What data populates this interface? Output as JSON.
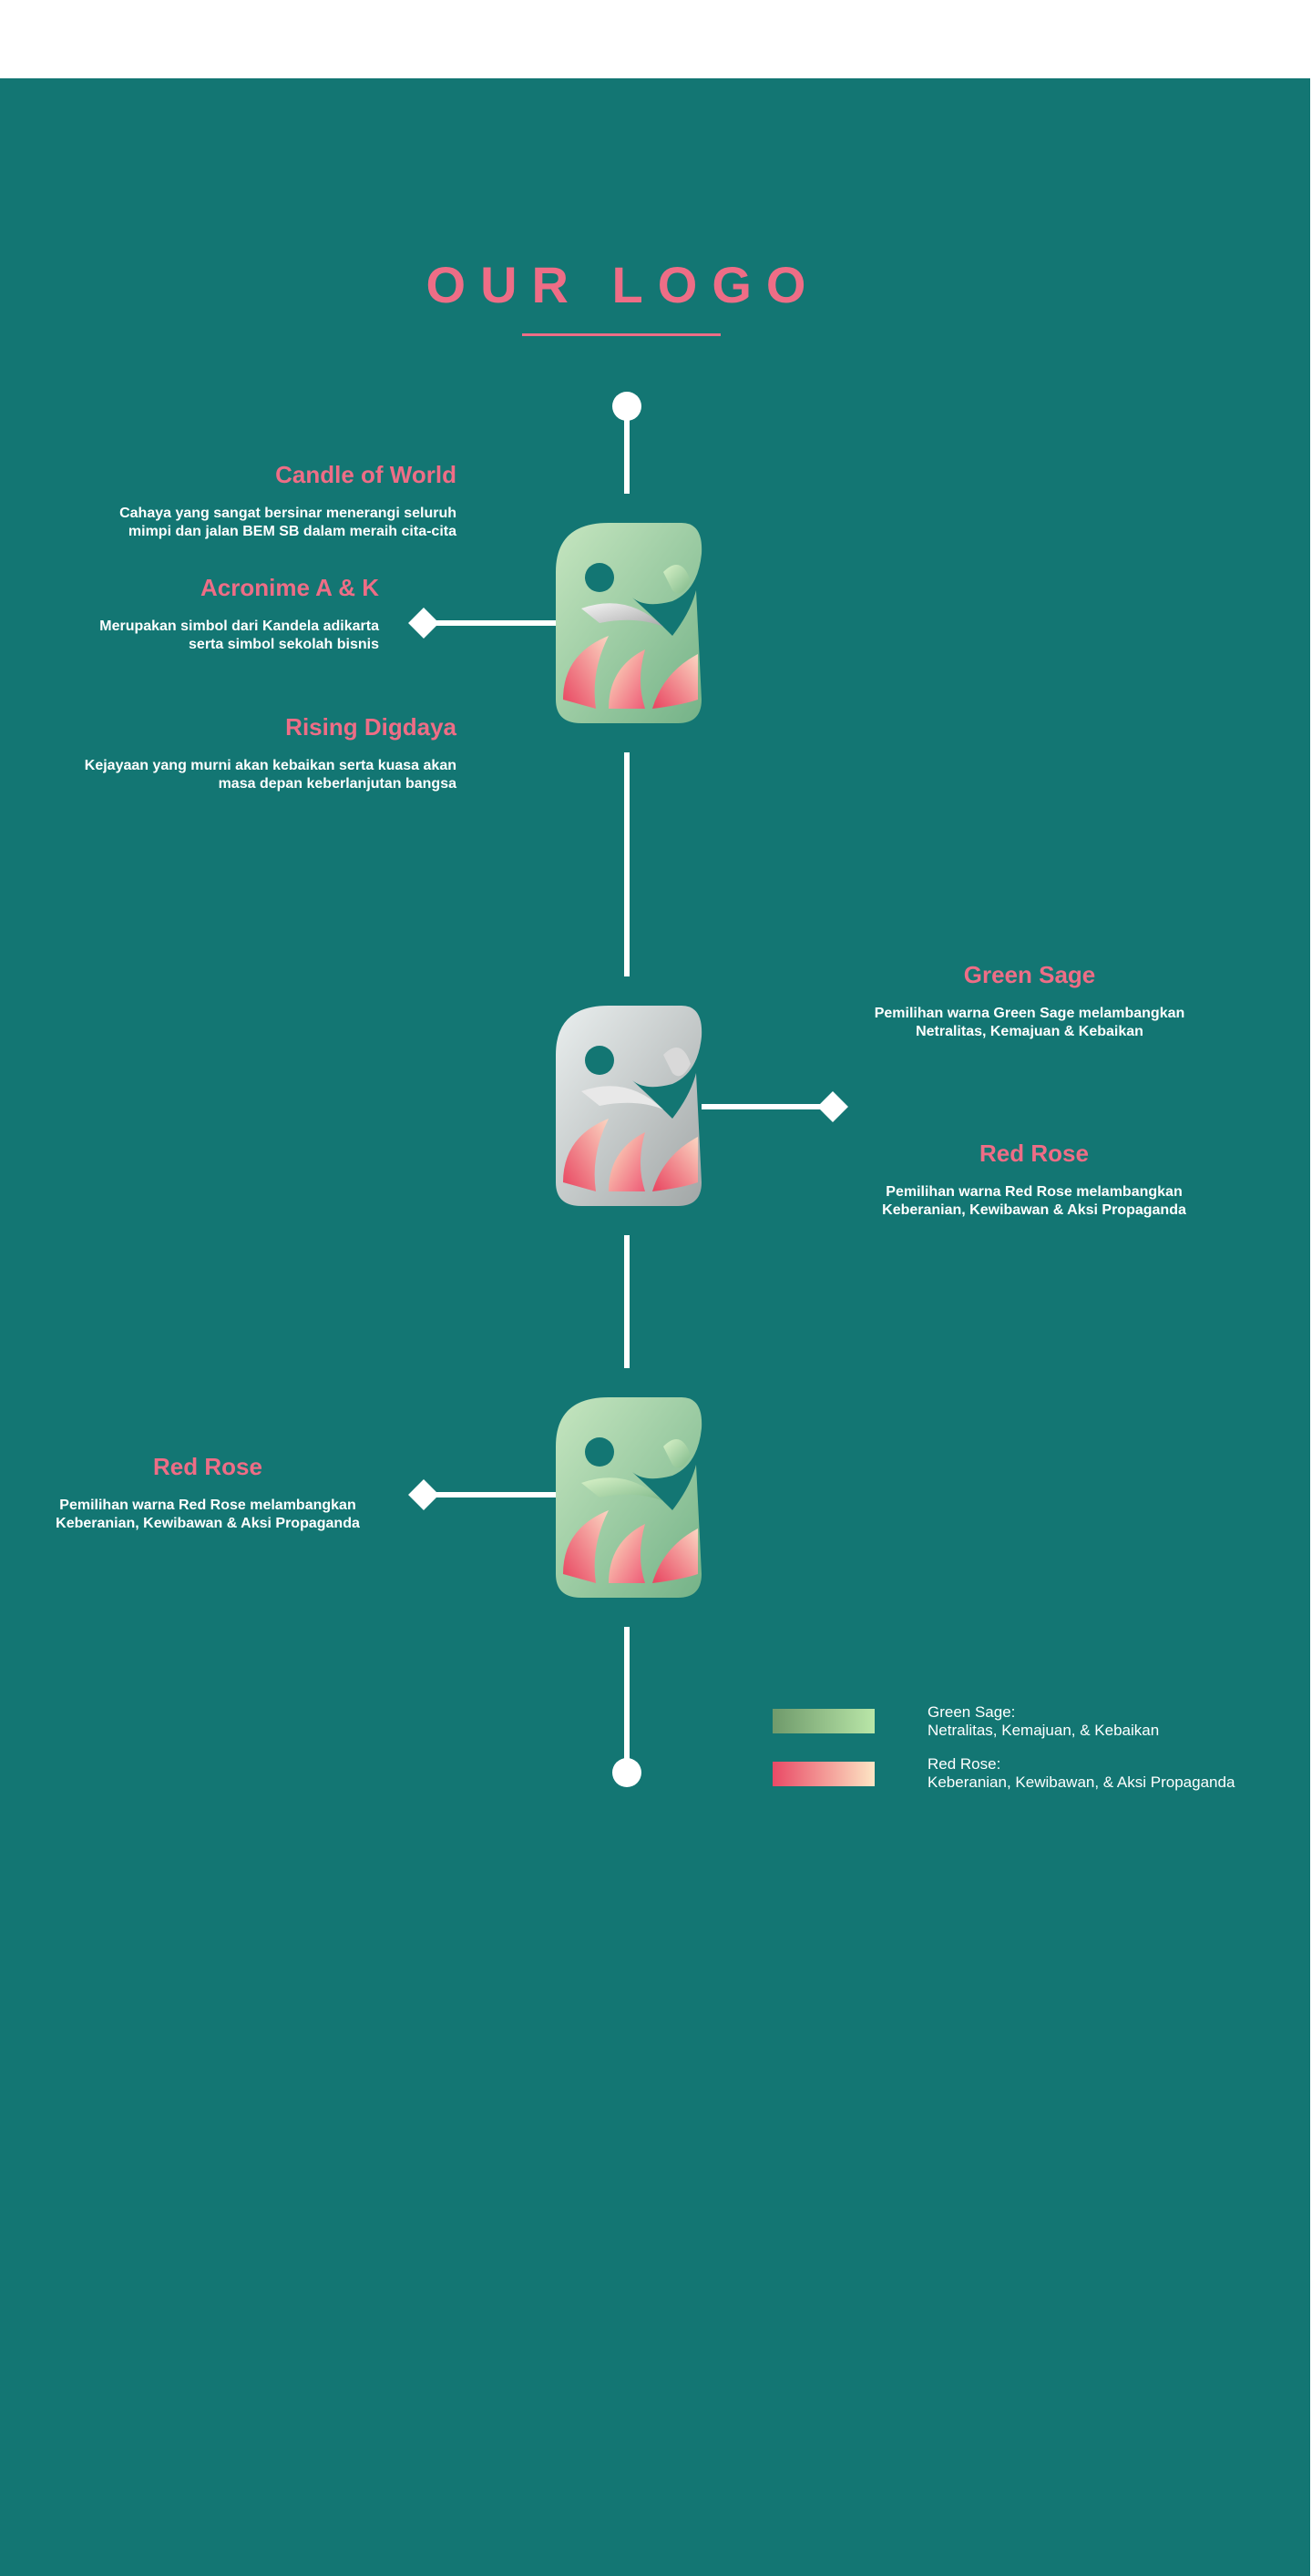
{
  "page": {
    "title": "OUR LOGO"
  },
  "sections": {
    "candle": {
      "title": "Candle of World",
      "lines": [
        "Cahaya yang sangat bersinar menerangi seluruh",
        "mimpi dan jalan BEM SB dalam meraih cita-cita"
      ]
    },
    "acronime": {
      "title": "Acronime A & K",
      "lines": [
        "Merupakan simbol dari Kandela adikarta",
        "serta simbol sekolah bisnis"
      ]
    },
    "rising": {
      "title": "Rising Digdaya",
      "lines": [
        "Kejayaan yang murni akan kebaikan serta kuasa akan",
        "masa depan keberlanjutan bangsa"
      ]
    },
    "green_sage": {
      "title": "Green Sage",
      "lines": [
        "Pemilihan warna Green Sage melambangkan",
        "Netralitas, Kemajuan & Kebaikan"
      ]
    },
    "red_rose_right": {
      "title": "Red Rose",
      "lines": [
        "Pemilihan warna Red Rose melambangkan",
        "Keberanian, Kewibawan & Aksi Propaganda"
      ]
    },
    "red_rose_left": {
      "title": "Red Rose",
      "lines": [
        "Pemilihan warna Red Rose melambangkan",
        "Keberanian, Kewibawan & Aksi Propaganda"
      ]
    }
  },
  "legend": {
    "green": {
      "label": "Green Sage:",
      "desc": "Netralitas, Kemajuan, & Kebaikan"
    },
    "red": {
      "label": "Red Rose:",
      "desc": "Keberanian, Kewibawan, & Aksi Propaganda"
    }
  },
  "colors": {
    "background": "#137673",
    "accent": "#ee6d86",
    "green_sage_start": "#6f9a6b",
    "green_sage_end": "#b9e6a8",
    "red_rose_start": "#e94a66",
    "red_rose_end": "#fde5c4"
  }
}
